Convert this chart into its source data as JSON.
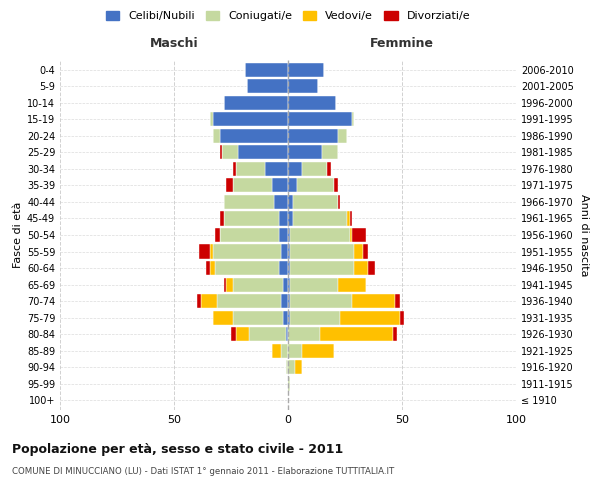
{
  "age_groups": [
    "100+",
    "95-99",
    "90-94",
    "85-89",
    "80-84",
    "75-79",
    "70-74",
    "65-69",
    "60-64",
    "55-59",
    "50-54",
    "45-49",
    "40-44",
    "35-39",
    "30-34",
    "25-29",
    "20-24",
    "15-19",
    "10-14",
    "5-9",
    "0-4"
  ],
  "birth_years": [
    "≤ 1910",
    "1911-1915",
    "1916-1920",
    "1921-1925",
    "1926-1930",
    "1931-1935",
    "1936-1940",
    "1941-1945",
    "1946-1950",
    "1951-1955",
    "1956-1960",
    "1961-1965",
    "1966-1970",
    "1971-1975",
    "1976-1980",
    "1981-1985",
    "1986-1990",
    "1991-1995",
    "1996-2000",
    "2001-2005",
    "2006-2010"
  ],
  "male": {
    "celibi": [
      0,
      0,
      0,
      0,
      1,
      2,
      3,
      2,
      4,
      3,
      4,
      4,
      6,
      7,
      10,
      22,
      30,
      33,
      28,
      18,
      19
    ],
    "coniugati": [
      0,
      0,
      1,
      3,
      16,
      22,
      28,
      22,
      28,
      30,
      26,
      24,
      22,
      17,
      13,
      7,
      3,
      1,
      0,
      0,
      0
    ],
    "vedovi": [
      0,
      0,
      0,
      4,
      6,
      9,
      7,
      3,
      2,
      1,
      0,
      0,
      0,
      0,
      0,
      0,
      0,
      0,
      0,
      0,
      0
    ],
    "divorziati": [
      0,
      0,
      0,
      0,
      2,
      0,
      2,
      1,
      2,
      5,
      2,
      2,
      0,
      3,
      1,
      1,
      0,
      0,
      0,
      0,
      0
    ]
  },
  "female": {
    "nubili": [
      0,
      0,
      0,
      0,
      0,
      1,
      1,
      1,
      1,
      1,
      1,
      2,
      2,
      4,
      6,
      15,
      22,
      28,
      21,
      13,
      16
    ],
    "coniugate": [
      0,
      1,
      3,
      6,
      14,
      22,
      27,
      21,
      28,
      28,
      26,
      24,
      20,
      16,
      11,
      7,
      4,
      1,
      0,
      0,
      0
    ],
    "vedove": [
      0,
      0,
      3,
      14,
      32,
      26,
      19,
      12,
      6,
      4,
      1,
      1,
      0,
      0,
      0,
      0,
      0,
      0,
      0,
      0,
      0
    ],
    "divorziate": [
      0,
      0,
      0,
      0,
      2,
      2,
      2,
      0,
      3,
      2,
      6,
      1,
      1,
      2,
      2,
      0,
      0,
      0,
      0,
      0,
      0
    ]
  },
  "colors": {
    "celibi": "#4472c4",
    "coniugati": "#c5d9a0",
    "vedovi": "#ffc000",
    "divorziati": "#cc0000"
  },
  "xlim": 100,
  "title": "Popolazione per età, sesso e stato civile - 2011",
  "subtitle": "COMUNE DI MINUCCIANO (LU) - Dati ISTAT 1° gennaio 2011 - Elaborazione TUTTITALIA.IT",
  "ylabel_left": "Fasce di età",
  "ylabel_right": "Anni di nascita",
  "legend_labels": [
    "Celibi/Nubili",
    "Coniugati/e",
    "Vedovi/e",
    "Divorziati/e"
  ],
  "background_color": "#ffffff",
  "grid_color": "#cccccc"
}
